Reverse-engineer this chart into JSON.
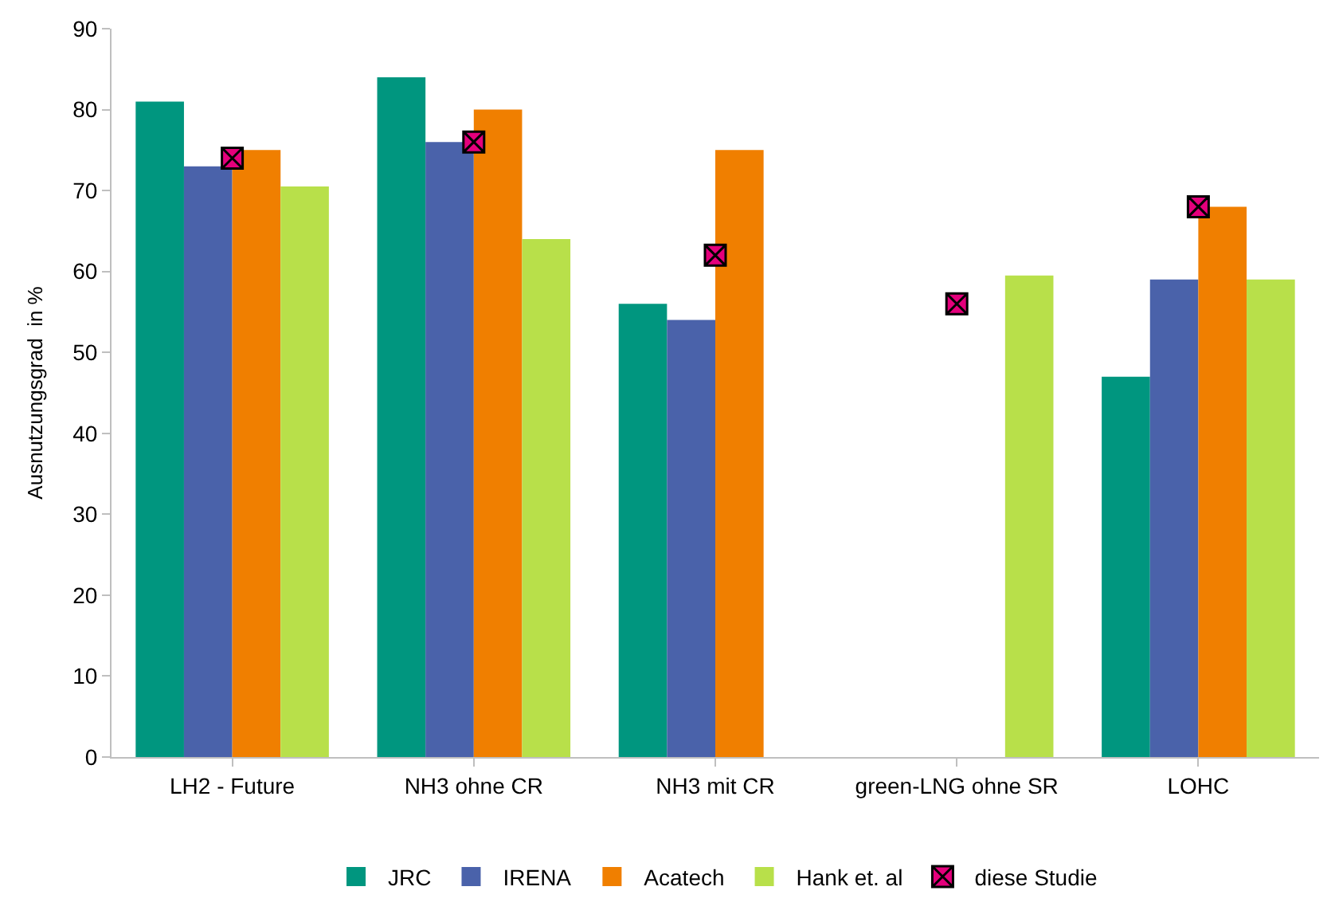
{
  "chart_data": {
    "type": "bar",
    "ylabel": "Ausnutzungsgrad  in %",
    "categories": [
      "LH2 - Future",
      "NH3 ohne CR",
      "NH3 mit CR",
      "green-LNG ohne SR",
      "LOHC"
    ],
    "series": [
      {
        "name": "JRC",
        "color": "#00967f",
        "values": [
          81,
          84,
          56,
          null,
          47
        ]
      },
      {
        "name": "IRENA",
        "color": "#4a62aa",
        "values": [
          73,
          76,
          54,
          null,
          59
        ]
      },
      {
        "name": "Acatech",
        "color": "#f07f00",
        "values": [
          75,
          80,
          75,
          null,
          68
        ]
      },
      {
        "name": "Hank et. al",
        "color": "#b8e04a",
        "values": [
          70.5,
          64,
          null,
          59.5,
          59
        ]
      },
      {
        "name": "diese Studie",
        "type": "scatter",
        "marker": "cross",
        "color": "#e4007c",
        "values": [
          74,
          76,
          62,
          56,
          68
        ]
      }
    ],
    "ylim": [
      0,
      90
    ],
    "yticks": [
      0,
      10,
      20,
      30,
      40,
      50,
      60,
      70,
      80,
      90
    ],
    "legend": "bottom"
  }
}
